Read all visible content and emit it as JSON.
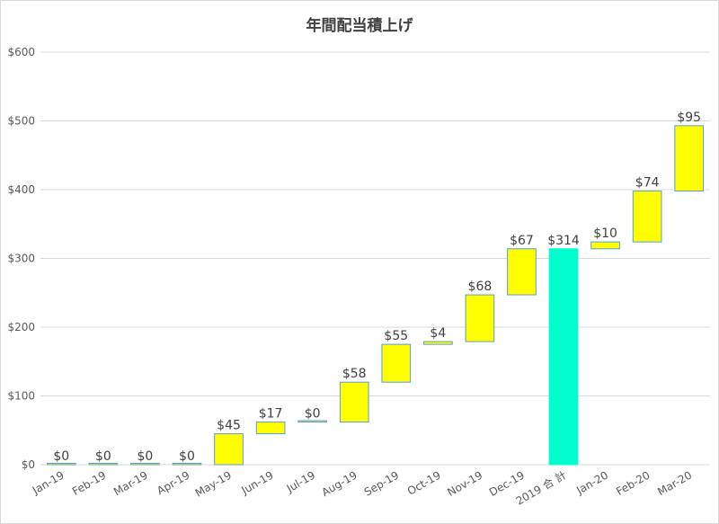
{
  "chart_data": {
    "type": "bar",
    "subtype": "waterfall",
    "title": "年間配当積上げ",
    "xlabel": "",
    "ylabel": "",
    "ylim": [
      0,
      600
    ],
    "yticks": [
      "$0",
      "$100",
      "$200",
      "$300",
      "$400",
      "$500",
      "$600"
    ],
    "ytick_values": [
      0,
      100,
      200,
      300,
      400,
      500,
      600
    ],
    "grid": true,
    "legend": "none",
    "categories": [
      "Jan-19",
      "Feb-19",
      "Mar-19",
      "Apr-19",
      "May-19",
      "Jun-19",
      "Jul-19",
      "Aug-19",
      "Sep-19",
      "Oct-19",
      "Nov-19",
      "Dec-19",
      "2019 合 計",
      "Jan-20",
      "Feb-20",
      "Mar-20"
    ],
    "values": [
      0,
      0,
      0,
      0,
      45,
      17,
      0,
      58,
      55,
      4,
      68,
      67,
      314,
      10,
      74,
      95
    ],
    "bases": [
      0,
      0,
      0,
      0,
      0,
      45,
      62,
      62,
      120,
      175,
      179,
      247,
      0,
      314,
      324,
      398
    ],
    "labels": [
      "$0",
      "$0",
      "$0",
      "$0",
      "$45",
      "$17",
      "$0",
      "$58",
      "$55",
      "$4",
      "$68",
      "$67",
      "$314",
      "$10",
      "$74",
      "$95"
    ],
    "total_index": 12,
    "colors": {
      "increase": "#ffff00",
      "total": "#00ffcc",
      "bar_border": "#5b9bd5",
      "grid": "#d9d9d9"
    }
  }
}
